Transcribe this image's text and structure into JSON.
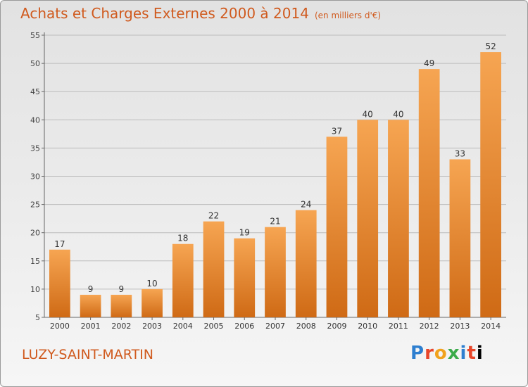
{
  "title": "Achats et Charges Externes 2000 à 2014",
  "subtitle": "(en milliers d'€)",
  "place": "LUZY-SAINT-MARTIN",
  "logo": [
    "P",
    "r",
    "o",
    "x",
    "i",
    "t",
    "i"
  ],
  "colors": {
    "bar_top": "#f6a552",
    "bar_bottom": "#cf6a15",
    "text_accent": "#d05a1e",
    "grid": "#bcbcbc"
  },
  "chart_data": {
    "type": "bar",
    "title": "Achats et Charges Externes 2000 à 2014",
    "categories": [
      "2000",
      "2001",
      "2002",
      "2003",
      "2004",
      "2005",
      "2006",
      "2007",
      "2008",
      "2009",
      "2010",
      "2011",
      "2012",
      "2013",
      "2014"
    ],
    "values": [
      17,
      9,
      9,
      10,
      18,
      22,
      19,
      21,
      24,
      37,
      40,
      40,
      49,
      33,
      52
    ],
    "ylim": [
      5,
      55
    ],
    "yticks": [
      5,
      10,
      15,
      20,
      25,
      30,
      35,
      40,
      45,
      50,
      55
    ],
    "grid": true,
    "xlabel": "",
    "ylabel": ""
  }
}
